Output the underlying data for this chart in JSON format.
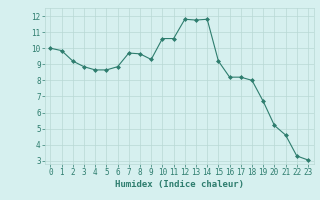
{
  "x": [
    0,
    1,
    2,
    3,
    4,
    5,
    6,
    7,
    8,
    9,
    10,
    11,
    12,
    13,
    14,
    15,
    16,
    17,
    18,
    19,
    20,
    21,
    22,
    23
  ],
  "y": [
    10.0,
    9.85,
    9.2,
    8.85,
    8.65,
    8.65,
    8.85,
    9.7,
    9.65,
    9.3,
    10.6,
    10.6,
    11.8,
    11.75,
    11.8,
    9.2,
    8.2,
    8.2,
    8.0,
    6.7,
    5.2,
    4.6,
    3.3,
    3.05
  ],
  "line_color": "#2e7d6e",
  "marker": "D",
  "marker_size": 2,
  "background_color": "#d6f0ef",
  "grid_color": "#b8d8d4",
  "xlabel": "Humidex (Indice chaleur)",
  "xlim": [
    -0.5,
    23.5
  ],
  "ylim": [
    2.8,
    12.5
  ],
  "yticks": [
    3,
    4,
    5,
    6,
    7,
    8,
    9,
    10,
    11,
    12
  ],
  "xticks": [
    0,
    1,
    2,
    3,
    4,
    5,
    6,
    7,
    8,
    9,
    10,
    11,
    12,
    13,
    14,
    15,
    16,
    17,
    18,
    19,
    20,
    21,
    22,
    23
  ],
  "tick_label_size": 5.5,
  "xlabel_size": 6.5,
  "tick_color": "#2e7d6e",
  "label_color": "#2e7d6e"
}
